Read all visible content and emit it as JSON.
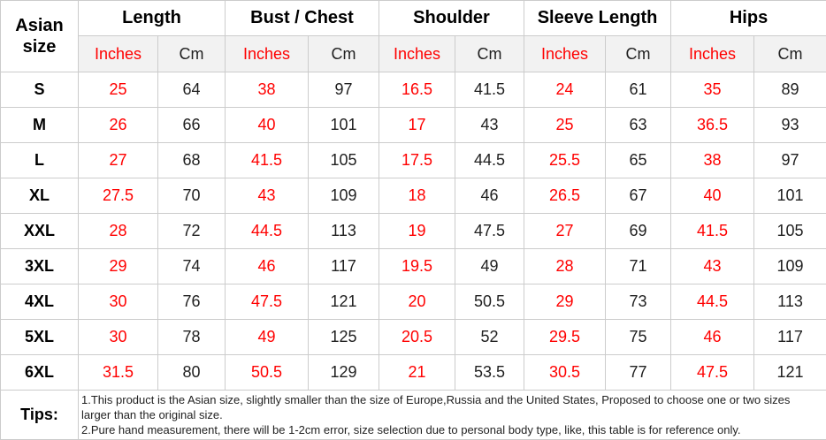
{
  "table": {
    "corner_header": "Asian size",
    "column_groups": [
      {
        "label": "Length"
      },
      {
        "label": "Bust / Chest"
      },
      {
        "label": "Shoulder"
      },
      {
        "label": "Sleeve Length"
      },
      {
        "label": "Hips"
      }
    ],
    "unit_headers": {
      "inches": "Inches",
      "cm": "Cm"
    },
    "rows": [
      {
        "size": "S",
        "values": [
          "25",
          "64",
          "38",
          "97",
          "16.5",
          "41.5",
          "24",
          "61",
          "35",
          "89"
        ]
      },
      {
        "size": "M",
        "values": [
          "26",
          "66",
          "40",
          "101",
          "17",
          "43",
          "25",
          "63",
          "36.5",
          "93"
        ]
      },
      {
        "size": "L",
        "values": [
          "27",
          "68",
          "41.5",
          "105",
          "17.5",
          "44.5",
          "25.5",
          "65",
          "38",
          "97"
        ]
      },
      {
        "size": "XL",
        "values": [
          "27.5",
          "70",
          "43",
          "109",
          "18",
          "46",
          "26.5",
          "67",
          "40",
          "101"
        ]
      },
      {
        "size": "XXL",
        "values": [
          "28",
          "72",
          "44.5",
          "113",
          "19",
          "47.5",
          "27",
          "69",
          "41.5",
          "105"
        ]
      },
      {
        "size": "3XL",
        "values": [
          "29",
          "74",
          "46",
          "117",
          "19.5",
          "49",
          "28",
          "71",
          "43",
          "109"
        ]
      },
      {
        "size": "4XL",
        "values": [
          "30",
          "76",
          "47.5",
          "121",
          "20",
          "50.5",
          "29",
          "73",
          "44.5",
          "113"
        ]
      },
      {
        "size": "5XL",
        "values": [
          "30",
          "78",
          "49",
          "125",
          "20.5",
          "52",
          "29.5",
          "75",
          "46",
          "117"
        ]
      },
      {
        "size": "6XL",
        "values": [
          "31.5",
          "80",
          "50.5",
          "129",
          "21",
          "53.5",
          "30.5",
          "77",
          "47.5",
          "121"
        ]
      }
    ]
  },
  "tips": {
    "label": "Tips:",
    "lines": [
      "1.This product is the Asian size, slightly smaller than the size of Europe,Russia and the United States, Proposed to choose one or two sizes larger than the original size.",
      "2.Pure hand measurement, there will be 1-2cm error, size selection due to personal body type, like, this table is for reference only."
    ]
  },
  "colors": {
    "inches_text": "#ff0000",
    "cm_text": "#1f1f1f",
    "border": "#cccccc",
    "subheader_bg": "#f2f2f2"
  }
}
